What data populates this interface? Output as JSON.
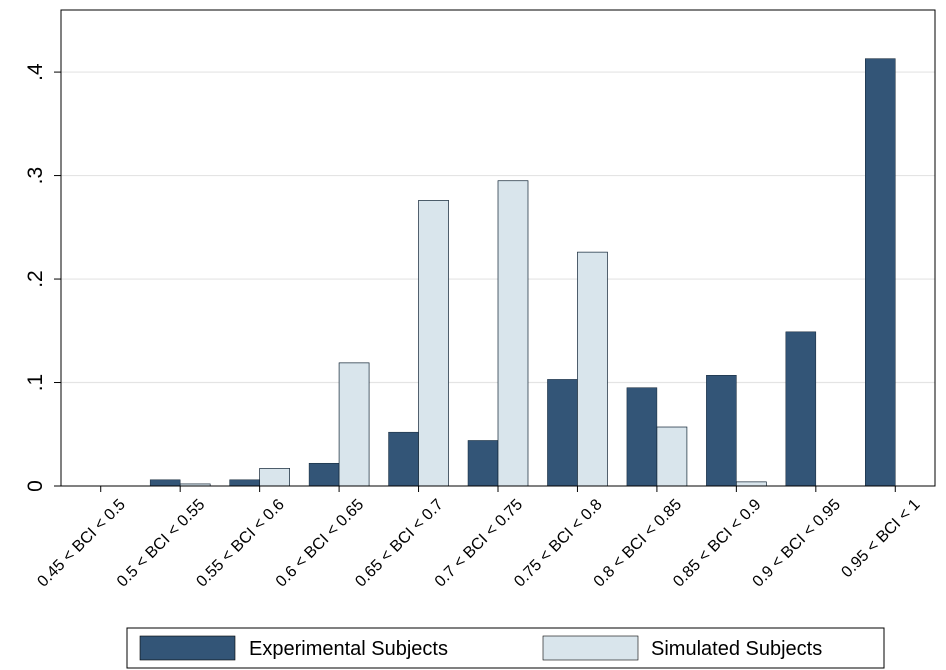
{
  "chart_data": {
    "type": "bar",
    "categories": [
      "0.45 < BCI < 0.5",
      "0.5 < BCI < 0.55",
      "0.55 < BCI < 0.6",
      "0.6 < BCI < 0.65",
      "0.65 < BCI < 0.7",
      "0.7 < BCI < 0.75",
      "0.75 < BCI < 0.8",
      "0.8 < BCI < 0.85",
      "0.85 < BCI < 0.9",
      "0.9 < BCI < 0.95",
      "0.95 < BCI < 1"
    ],
    "series": [
      {
        "name": "Experimental Subjects",
        "color": "#335577",
        "values": [
          0.0,
          0.006,
          0.006,
          0.022,
          0.052,
          0.044,
          0.103,
          0.095,
          0.107,
          0.149,
          0.413
        ]
      },
      {
        "name": "Simulated Subjects",
        "color": "#d9e5ec",
        "values": [
          0.0,
          0.002,
          0.017,
          0.119,
          0.276,
          0.295,
          0.226,
          0.057,
          0.004,
          0.0,
          0.0
        ]
      }
    ],
    "ylim": [
      0,
      0.46
    ],
    "yticks": [
      0,
      0.1,
      0.2,
      0.3,
      0.4
    ],
    "ytick_labels": [
      "0",
      ".1",
      ".2",
      ".3",
      ".4"
    ],
    "grid": true,
    "legend_position": "bottom",
    "title": "",
    "xlabel": "",
    "ylabel": ""
  }
}
